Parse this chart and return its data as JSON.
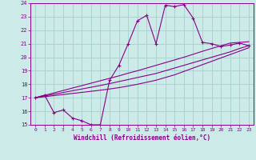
{
  "xlabel": "Windchill (Refroidissement éolien,°C)",
  "bg_color": "#cceae8",
  "grid_color": "#aad4d0",
  "line_color": "#880088",
  "xlim": [
    -0.5,
    23.5
  ],
  "ylim": [
    15,
    24
  ],
  "xticks": [
    0,
    1,
    2,
    3,
    4,
    5,
    6,
    7,
    8,
    9,
    10,
    11,
    12,
    13,
    14,
    15,
    16,
    17,
    18,
    19,
    20,
    21,
    22,
    23
  ],
  "yticks": [
    15,
    16,
    17,
    18,
    19,
    20,
    21,
    22,
    23,
    24
  ],
  "x_data": [
    0,
    1,
    2,
    3,
    4,
    5,
    6,
    7,
    8,
    9,
    10,
    11,
    12,
    13,
    14,
    15,
    16,
    17,
    18,
    19,
    20,
    21,
    22,
    23
  ],
  "y_main": [
    17.0,
    17.2,
    15.9,
    16.1,
    15.5,
    15.3,
    15.0,
    15.0,
    18.3,
    19.4,
    21.0,
    22.7,
    23.1,
    21.0,
    23.85,
    23.75,
    23.9,
    22.9,
    21.1,
    21.0,
    20.8,
    20.9,
    21.05,
    20.85
  ],
  "y_line1": [
    17.0,
    17.13,
    17.26,
    17.39,
    17.52,
    17.65,
    17.78,
    17.91,
    18.05,
    18.2,
    18.35,
    18.5,
    18.65,
    18.8,
    19.0,
    19.2,
    19.4,
    19.6,
    19.8,
    20.0,
    20.2,
    20.4,
    20.65,
    20.85
  ],
  "y_line2": [
    17.0,
    17.18,
    17.36,
    17.54,
    17.72,
    17.9,
    18.08,
    18.26,
    18.44,
    18.62,
    18.82,
    19.0,
    19.2,
    19.4,
    19.6,
    19.8,
    20.0,
    20.22,
    20.44,
    20.65,
    20.85,
    21.05,
    21.1,
    21.15
  ],
  "y_line3": [
    17.0,
    17.08,
    17.16,
    17.24,
    17.32,
    17.4,
    17.48,
    17.56,
    17.65,
    17.75,
    17.87,
    18.0,
    18.15,
    18.3,
    18.5,
    18.7,
    18.95,
    19.2,
    19.45,
    19.7,
    19.95,
    20.2,
    20.45,
    20.7
  ]
}
